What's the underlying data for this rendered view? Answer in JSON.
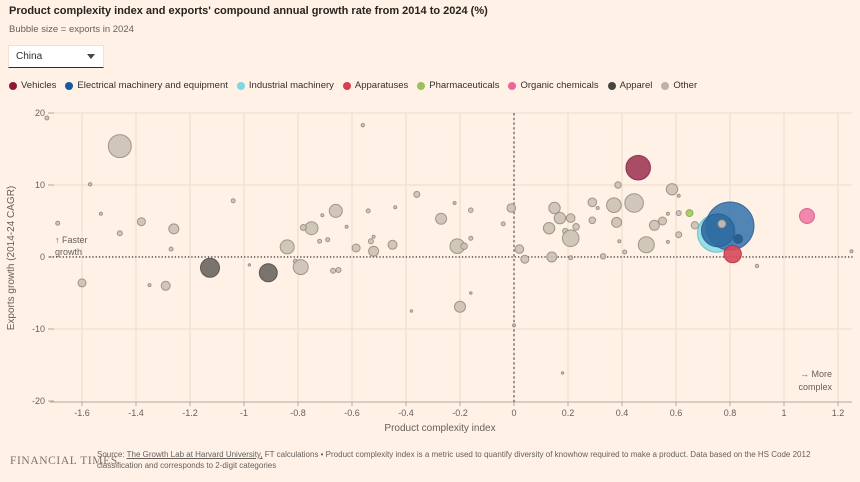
{
  "header": {
    "title": "Product complexity index and exports' compound annual growth rate from 2014 to 2024 (%)",
    "subtitle": "Bubble size = exports in 2024"
  },
  "controls": {
    "country_select": {
      "value": "China"
    }
  },
  "legend": [
    {
      "label": "Vehicles",
      "color": "#8f1838"
    },
    {
      "label": "Electrical machinery and equipment",
      "color": "#16599d"
    },
    {
      "label": "Industrial machinery",
      "color": "#7fd6e4"
    },
    {
      "label": "Apparatuses",
      "color": "#d63e52"
    },
    {
      "label": "Pharmaceuticals",
      "color": "#9bc05a"
    },
    {
      "label": "Organic chemicals",
      "color": "#ee6698"
    },
    {
      "label": "Apparel",
      "color": "#47433f"
    },
    {
      "label": "Other",
      "color": "#bcb3a7"
    }
  ],
  "chart_data": {
    "type": "scatter",
    "bubble_size_meaning": "exports in 2024",
    "xlabel": "Product complexity index",
    "ylabel": "Exports growth (2014-24 CAGR)",
    "xlim": [
      -1.75,
      1.28
    ],
    "ylim": [
      -20.5,
      20.5
    ],
    "x_ticks": [
      -1.6,
      -1.4,
      -1.2,
      -1,
      -0.8,
      -0.6,
      -0.4,
      -0.2,
      0,
      0.2,
      0.4,
      0.6,
      0.8,
      1,
      1.2
    ],
    "x_tick_labels": [
      "-1.6",
      "-1.4",
      "-1.2",
      "-1",
      "-0.8",
      "-0.6",
      "-0.4",
      "-0.2",
      "0",
      "0.2",
      "0.4",
      "0.6",
      "0.8",
      "1",
      "1.2"
    ],
    "y_ticks": [
      20,
      10,
      0,
      -10,
      -20
    ],
    "y_tick_labels": [
      "20",
      "10",
      "0",
      "-10",
      "-20"
    ],
    "reference_lines": {
      "x": 0,
      "y": 0
    },
    "annotations": {
      "faster_growth": [
        "↑ Faster",
        "growth"
      ],
      "more_complex": [
        "→ More",
        "complex"
      ]
    },
    "series": [
      {
        "name": "Other",
        "fill": "#cbc2b5",
        "stroke": "#93897b",
        "points": [
          [
            -1.73,
            19.3,
            2
          ],
          [
            -1.46,
            15.4,
            11.5
          ],
          [
            -1.57,
            10.1,
            1.7
          ],
          [
            -1.69,
            4.7,
            2
          ],
          [
            -1.53,
            6.0,
            1.5
          ],
          [
            -1.46,
            3.3,
            2.5
          ],
          [
            -1.38,
            4.9,
            4
          ],
          [
            -1.26,
            3.9,
            5
          ],
          [
            -1.27,
            1.1,
            2
          ],
          [
            -1.04,
            7.8,
            2
          ],
          [
            -1.6,
            -3.6,
            4
          ],
          [
            -1.35,
            -3.9,
            1.5
          ],
          [
            -1.29,
            -4.0,
            4.5
          ],
          [
            -0.98,
            -1.1,
            1.2
          ],
          [
            -0.84,
            1.4,
            7
          ],
          [
            -0.81,
            -0.6,
            2
          ],
          [
            -0.79,
            -1.4,
            7.5
          ],
          [
            -0.67,
            -1.9,
            2.5
          ],
          [
            -0.65,
            -1.8,
            2.5
          ],
          [
            -0.66,
            6.4,
            6.5
          ],
          [
            -0.75,
            4.0,
            6.5
          ],
          [
            -0.78,
            4.1,
            3
          ],
          [
            -0.71,
            5.8,
            1.5
          ],
          [
            -0.72,
            2.2,
            2
          ],
          [
            -0.69,
            2.4,
            2
          ],
          [
            -0.62,
            4.2,
            1.5
          ],
          [
            -0.56,
            18.3,
            1.7
          ],
          [
            -0.54,
            6.4,
            2
          ],
          [
            -0.44,
            6.9,
            1.5
          ],
          [
            -0.53,
            2.2,
            2.5
          ],
          [
            -0.52,
            2.8,
            1.5
          ],
          [
            -0.585,
            1.25,
            4
          ],
          [
            -0.52,
            0.8,
            5
          ],
          [
            -0.45,
            1.7,
            4.5
          ],
          [
            -0.36,
            8.7,
            3
          ],
          [
            -0.27,
            5.3,
            5.5
          ],
          [
            -0.22,
            7.5,
            1.5
          ],
          [
            -0.21,
            1.5,
            7.3
          ],
          [
            -0.185,
            1.5,
            3.3
          ],
          [
            -0.16,
            6.5,
            2.3
          ],
          [
            -0.16,
            2.6,
            2
          ],
          [
            -0.2,
            -6.9,
            5.5
          ],
          [
            -0.16,
            -5.0,
            1.3
          ],
          [
            -0.38,
            -7.5,
            1.2
          ],
          [
            0.0,
            -9.5,
            1.5
          ],
          [
            0.18,
            -16.1,
            1.2
          ],
          [
            -0.04,
            4.6,
            2
          ],
          [
            -0.01,
            6.8,
            4.3
          ],
          [
            0.02,
            1.1,
            4.3
          ],
          [
            0.04,
            -0.3,
            4
          ],
          [
            0.14,
            0.0,
            5
          ],
          [
            0.21,
            -0.1,
            2
          ],
          [
            0.15,
            6.8,
            5.7
          ],
          [
            0.17,
            5.4,
            5.7
          ],
          [
            0.21,
            5.4,
            4.3
          ],
          [
            0.13,
            4.0,
            5.7
          ],
          [
            0.19,
            3.6,
            2.7
          ],
          [
            0.23,
            4.2,
            3.3
          ],
          [
            0.21,
            2.6,
            8.3
          ],
          [
            0.29,
            7.6,
            4.3
          ],
          [
            0.31,
            6.8,
            1.5
          ],
          [
            0.29,
            5.1,
            3.3
          ],
          [
            0.33,
            0.1,
            2.7
          ],
          [
            0.385,
            10.0,
            3.2
          ],
          [
            0.37,
            7.2,
            7.3
          ],
          [
            0.445,
            7.5,
            9.3
          ],
          [
            0.585,
            9.4,
            5.7
          ],
          [
            0.61,
            8.5,
            1.5
          ],
          [
            0.38,
            4.8,
            5
          ],
          [
            0.52,
            4.4,
            5
          ],
          [
            0.55,
            5.0,
            4
          ],
          [
            0.57,
            6.0,
            1.5
          ],
          [
            0.61,
            6.1,
            2.5
          ],
          [
            0.61,
            3.1,
            3
          ],
          [
            0.49,
            1.7,
            8
          ],
          [
            0.57,
            2.1,
            1.5
          ],
          [
            0.39,
            2.2,
            1.5
          ],
          [
            0.41,
            0.7,
            2
          ],
          [
            0.67,
            4.4,
            3.7
          ],
          [
            0.9,
            -1.25,
            1.7
          ],
          [
            1.25,
            0.8,
            1.5
          ]
        ]
      },
      {
        "name": "Apparel",
        "fill": "#6b6660",
        "stroke": "#4e4944",
        "points": [
          [
            -1.126,
            -1.5,
            9.5
          ],
          [
            -0.91,
            -2.2,
            9
          ]
        ]
      },
      {
        "name": "Vehicles",
        "fill": "#a03a58",
        "stroke": "#84284a",
        "points": [
          [
            0.46,
            12.4,
            12.3
          ]
        ]
      },
      {
        "name": "Pharmaceuticals",
        "fill": "#a6c766",
        "stroke": "#84a84a",
        "points": [
          [
            0.65,
            6.1,
            3.5
          ]
        ]
      },
      {
        "name": "Organic chemicals",
        "fill": "#f07ba3",
        "stroke": "#d45584",
        "points": [
          [
            1.085,
            5.7,
            7.5
          ]
        ]
      },
      {
        "name": "Industrial machinery",
        "fill": "#8cdde8",
        "stroke": "#52bdd0",
        "points": [
          [
            0.75,
            3.3,
            19
          ]
        ]
      },
      {
        "name": "Electrical machinery and equipment",
        "fill": "#3d79ae",
        "stroke": "#2a5a8c",
        "points": [
          [
            0.8,
            4.3,
            24
          ],
          [
            0.755,
            3.7,
            16.5,
            "#2f6ba2"
          ],
          [
            0.83,
            2.5,
            4.5,
            "#275b90"
          ]
        ]
      },
      {
        "name": "Apparatuses",
        "fill": "#d8485a",
        "stroke": "#b32c42",
        "points": [
          [
            0.81,
            0.4,
            8.7
          ]
        ]
      },
      {
        "name": "Other",
        "fill": "#cbc2b5",
        "stroke": "#93897b",
        "points": [
          [
            0.77,
            4.6,
            4
          ]
        ]
      }
    ]
  },
  "footer": {
    "brand": "FINANCIAL TIMES",
    "source_prefix": "Source: ",
    "source_link": "The Growth Lab at Harvard University,",
    "source_rest": " FT calculations • Product complexity index is a metric used to quantify diversity of knowhow required to make a product. Data based on the HS Code 2012 classification and corresponds to 2-digit categories"
  }
}
